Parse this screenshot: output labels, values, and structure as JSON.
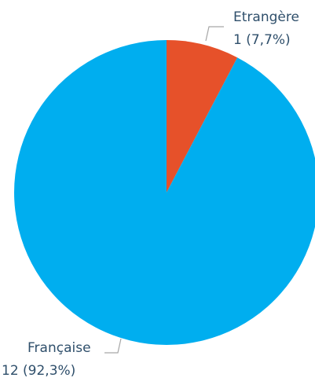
{
  "chart_data": {
    "type": "pie",
    "title": "",
    "start_angle_deg": 0,
    "direction": "clockwise",
    "slices": [
      {
        "category": "Etrangère",
        "value": 1,
        "percent": 7.7,
        "value_label": "1 (7,7%)",
        "color": "#e6512a"
      },
      {
        "category": "Française",
        "value": 12,
        "percent": 92.3,
        "value_label": "12 (92,3%)",
        "color": "#00aeef"
      }
    ]
  }
}
